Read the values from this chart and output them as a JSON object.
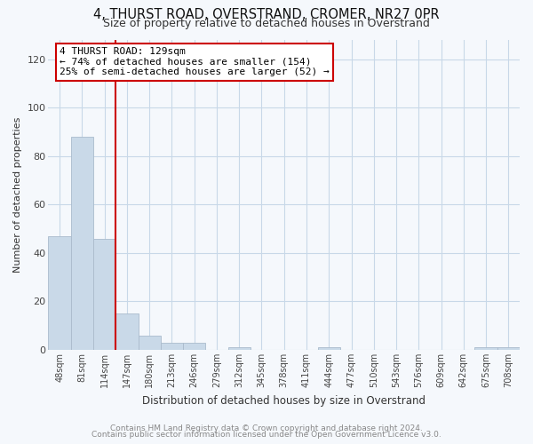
{
  "title": "4, THURST ROAD, OVERSTRAND, CROMER, NR27 0PR",
  "subtitle": "Size of property relative to detached houses in Overstrand",
  "xlabel": "Distribution of detached houses by size in Overstrand",
  "ylabel": "Number of detached properties",
  "footnote1": "Contains HM Land Registry data © Crown copyright and database right 2024.",
  "footnote2": "Contains public sector information licensed under the Open Government Licence v3.0.",
  "bar_labels": [
    "48sqm",
    "81sqm",
    "114sqm",
    "147sqm",
    "180sqm",
    "213sqm",
    "246sqm",
    "279sqm",
    "312sqm",
    "345sqm",
    "378sqm",
    "411sqm",
    "444sqm",
    "477sqm",
    "510sqm",
    "543sqm",
    "576sqm",
    "609sqm",
    "642sqm",
    "675sqm",
    "708sqm"
  ],
  "bar_values": [
    47,
    88,
    46,
    15,
    6,
    3,
    3,
    0,
    1,
    0,
    0,
    0,
    1,
    0,
    0,
    0,
    0,
    0,
    0,
    1,
    1
  ],
  "bar_color": "#c9d9e8",
  "bar_edge_color": "#aabbcc",
  "vline_x_idx": 2,
  "vline_color": "#cc0000",
  "annotation_line1": "4 THURST ROAD: 129sqm",
  "annotation_line2": "← 74% of detached houses are smaller (154)",
  "annotation_line3": "25% of semi-detached houses are larger (52) →",
  "annotation_box_color": "#ffffff",
  "annotation_box_edge": "#cc0000",
  "ylim": [
    0,
    128
  ],
  "yticks": [
    0,
    20,
    40,
    60,
    80,
    100,
    120
  ],
  "background_color": "#f5f8fc",
  "plot_bg_color": "#f5f8fc",
  "grid_color": "#c8d8e8"
}
